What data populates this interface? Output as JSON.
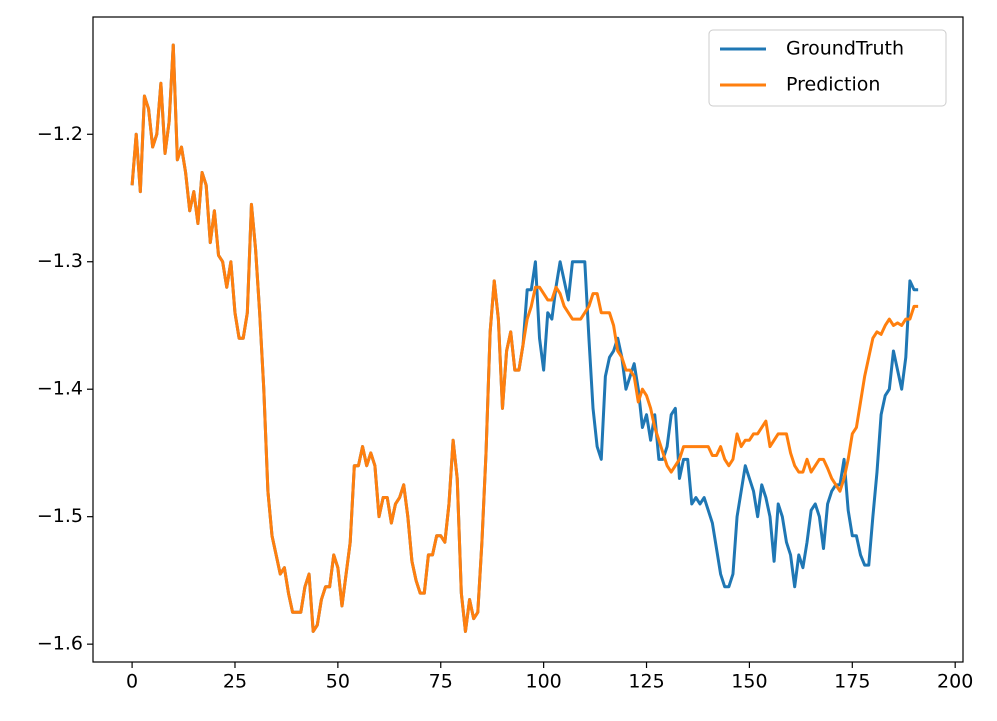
{
  "chart_data": {
    "type": "line",
    "x": [
      0,
      1,
      2,
      3,
      4,
      5,
      6,
      7,
      8,
      9,
      10,
      11,
      12,
      13,
      14,
      15,
      16,
      17,
      18,
      19,
      20,
      21,
      22,
      23,
      24,
      25,
      26,
      27,
      28,
      29,
      30,
      31,
      32,
      33,
      34,
      35,
      36,
      37,
      38,
      39,
      40,
      41,
      42,
      43,
      44,
      45,
      46,
      47,
      48,
      49,
      50,
      51,
      52,
      53,
      54,
      55,
      56,
      57,
      58,
      59,
      60,
      61,
      62,
      63,
      64,
      65,
      66,
      67,
      68,
      69,
      70,
      71,
      72,
      73,
      74,
      75,
      76,
      77,
      78,
      79,
      80,
      81,
      82,
      83,
      84,
      85,
      86,
      87,
      88,
      89,
      90,
      91,
      92,
      93,
      94,
      95,
      96,
      97,
      98,
      99,
      100,
      101,
      102,
      103,
      104,
      105,
      106,
      107,
      108,
      109,
      110,
      111,
      112,
      113,
      114,
      115,
      116,
      117,
      118,
      119,
      120,
      121,
      122,
      123,
      124,
      125,
      126,
      127,
      128,
      129,
      130,
      131,
      132,
      133,
      134,
      135,
      136,
      137,
      138,
      139,
      140,
      141,
      142,
      143,
      144,
      145,
      146,
      147,
      148,
      149,
      150,
      151,
      152,
      153,
      154,
      155,
      156,
      157,
      158,
      159,
      160,
      161,
      162,
      163,
      164,
      165,
      166,
      167,
      168,
      169,
      170,
      171,
      172,
      173,
      174,
      175,
      176,
      177,
      178,
      179,
      180,
      181,
      182,
      183,
      184,
      185,
      186,
      187,
      188,
      189,
      190,
      191
    ],
    "series": [
      {
        "name": "GroundTruth",
        "color": "#1f77b4",
        "values": [
          -1.24,
          -1.2,
          -1.245,
          -1.17,
          -1.18,
          -1.21,
          -1.2,
          -1.16,
          -1.215,
          -1.19,
          -1.13,
          -1.22,
          -1.21,
          -1.23,
          -1.26,
          -1.245,
          -1.27,
          -1.23,
          -1.24,
          -1.285,
          -1.26,
          -1.295,
          -1.3,
          -1.32,
          -1.3,
          -1.34,
          -1.36,
          -1.36,
          -1.34,
          -1.255,
          -1.29,
          -1.34,
          -1.4,
          -1.48,
          -1.515,
          -1.53,
          -1.545,
          -1.54,
          -1.56,
          -1.575,
          -1.575,
          -1.575,
          -1.555,
          -1.545,
          -1.59,
          -1.585,
          -1.565,
          -1.555,
          -1.555,
          -1.53,
          -1.54,
          -1.57,
          -1.545,
          -1.52,
          -1.46,
          -1.46,
          -1.445,
          -1.46,
          -1.45,
          -1.46,
          -1.5,
          -1.485,
          -1.485,
          -1.505,
          -1.49,
          -1.485,
          -1.475,
          -1.5,
          -1.535,
          -1.55,
          -1.56,
          -1.56,
          -1.53,
          -1.53,
          -1.515,
          -1.515,
          -1.52,
          -1.49,
          -1.44,
          -1.47,
          -1.56,
          -1.59,
          -1.565,
          -1.58,
          -1.575,
          -1.52,
          -1.45,
          -1.355,
          -1.315,
          -1.345,
          -1.415,
          -1.37,
          -1.355,
          -1.385,
          -1.385,
          -1.365,
          -1.322,
          -1.322,
          -1.3,
          -1.36,
          -1.385,
          -1.34,
          -1.345,
          -1.32,
          -1.3,
          -1.315,
          -1.33,
          -1.3,
          -1.3,
          -1.3,
          -1.3,
          -1.36,
          -1.415,
          -1.445,
          -1.455,
          -1.39,
          -1.375,
          -1.37,
          -1.36,
          -1.375,
          -1.4,
          -1.39,
          -1.38,
          -1.4,
          -1.43,
          -1.42,
          -1.44,
          -1.42,
          -1.455,
          -1.455,
          -1.445,
          -1.42,
          -1.415,
          -1.47,
          -1.455,
          -1.455,
          -1.49,
          -1.485,
          -1.49,
          -1.485,
          -1.495,
          -1.505,
          -1.525,
          -1.545,
          -1.555,
          -1.555,
          -1.545,
          -1.5,
          -1.48,
          -1.46,
          -1.47,
          -1.48,
          -1.5,
          -1.475,
          -1.485,
          -1.5,
          -1.535,
          -1.49,
          -1.5,
          -1.52,
          -1.53,
          -1.555,
          -1.53,
          -1.54,
          -1.52,
          -1.495,
          -1.49,
          -1.5,
          -1.525,
          -1.49,
          -1.48,
          -1.475,
          -1.475,
          -1.455,
          -1.495,
          -1.515,
          -1.515,
          -1.53,
          -1.538,
          -1.538,
          -1.5,
          -1.465,
          -1.42,
          -1.405,
          -1.4,
          -1.37,
          -1.385,
          -1.4,
          -1.375,
          -1.315,
          -1.322,
          -1.322
        ]
      },
      {
        "name": "Prediction",
        "color": "#ff7f0e",
        "values": [
          -1.24,
          -1.2,
          -1.245,
          -1.17,
          -1.18,
          -1.21,
          -1.2,
          -1.16,
          -1.215,
          -1.19,
          -1.13,
          -1.22,
          -1.21,
          -1.23,
          -1.26,
          -1.245,
          -1.27,
          -1.23,
          -1.24,
          -1.285,
          -1.26,
          -1.295,
          -1.3,
          -1.32,
          -1.3,
          -1.34,
          -1.36,
          -1.36,
          -1.34,
          -1.255,
          -1.29,
          -1.34,
          -1.4,
          -1.48,
          -1.515,
          -1.53,
          -1.545,
          -1.54,
          -1.56,
          -1.575,
          -1.575,
          -1.575,
          -1.555,
          -1.545,
          -1.59,
          -1.585,
          -1.565,
          -1.555,
          -1.555,
          -1.53,
          -1.54,
          -1.57,
          -1.545,
          -1.52,
          -1.46,
          -1.46,
          -1.445,
          -1.46,
          -1.45,
          -1.46,
          -1.5,
          -1.485,
          -1.485,
          -1.505,
          -1.49,
          -1.485,
          -1.475,
          -1.5,
          -1.535,
          -1.55,
          -1.56,
          -1.56,
          -1.53,
          -1.53,
          -1.515,
          -1.515,
          -1.52,
          -1.49,
          -1.44,
          -1.47,
          -1.56,
          -1.59,
          -1.565,
          -1.58,
          -1.575,
          -1.52,
          -1.45,
          -1.355,
          -1.315,
          -1.345,
          -1.415,
          -1.37,
          -1.355,
          -1.385,
          -1.385,
          -1.365,
          -1.345,
          -1.335,
          -1.32,
          -1.32,
          -1.325,
          -1.33,
          -1.33,
          -1.32,
          -1.325,
          -1.335,
          -1.34,
          -1.345,
          -1.345,
          -1.345,
          -1.34,
          -1.335,
          -1.325,
          -1.325,
          -1.34,
          -1.34,
          -1.34,
          -1.35,
          -1.37,
          -1.375,
          -1.385,
          -1.385,
          -1.39,
          -1.41,
          -1.4,
          -1.405,
          -1.415,
          -1.43,
          -1.44,
          -1.45,
          -1.46,
          -1.465,
          -1.46,
          -1.455,
          -1.445,
          -1.445,
          -1.445,
          -1.445,
          -1.445,
          -1.445,
          -1.445,
          -1.452,
          -1.452,
          -1.445,
          -1.455,
          -1.46,
          -1.455,
          -1.435,
          -1.445,
          -1.44,
          -1.44,
          -1.435,
          -1.435,
          -1.43,
          -1.425,
          -1.445,
          -1.44,
          -1.435,
          -1.435,
          -1.435,
          -1.45,
          -1.46,
          -1.465,
          -1.465,
          -1.455,
          -1.465,
          -1.46,
          -1.455,
          -1.455,
          -1.462,
          -1.47,
          -1.475,
          -1.48,
          -1.47,
          -1.455,
          -1.435,
          -1.43,
          -1.41,
          -1.39,
          -1.375,
          -1.36,
          -1.355,
          -1.357,
          -1.35,
          -1.345,
          -1.35,
          -1.348,
          -1.35,
          -1.345,
          -1.345,
          -1.335,
          -1.335
        ]
      }
    ],
    "xlim": [
      -9.5,
      201.9
    ],
    "xticks": [
      0,
      25,
      50,
      75,
      100,
      125,
      150,
      175,
      200
    ],
    "ylim": [
      -1.614,
      -1.108
    ],
    "yticks": [
      {
        "value": -1.6,
        "label": "−1.6"
      },
      {
        "value": -1.5,
        "label": "−1.5"
      },
      {
        "value": -1.4,
        "label": "−1.4"
      },
      {
        "value": -1.3,
        "label": "−1.3"
      },
      {
        "value": -1.2,
        "label": "−1.2"
      }
    ],
    "legend": "upper right"
  }
}
